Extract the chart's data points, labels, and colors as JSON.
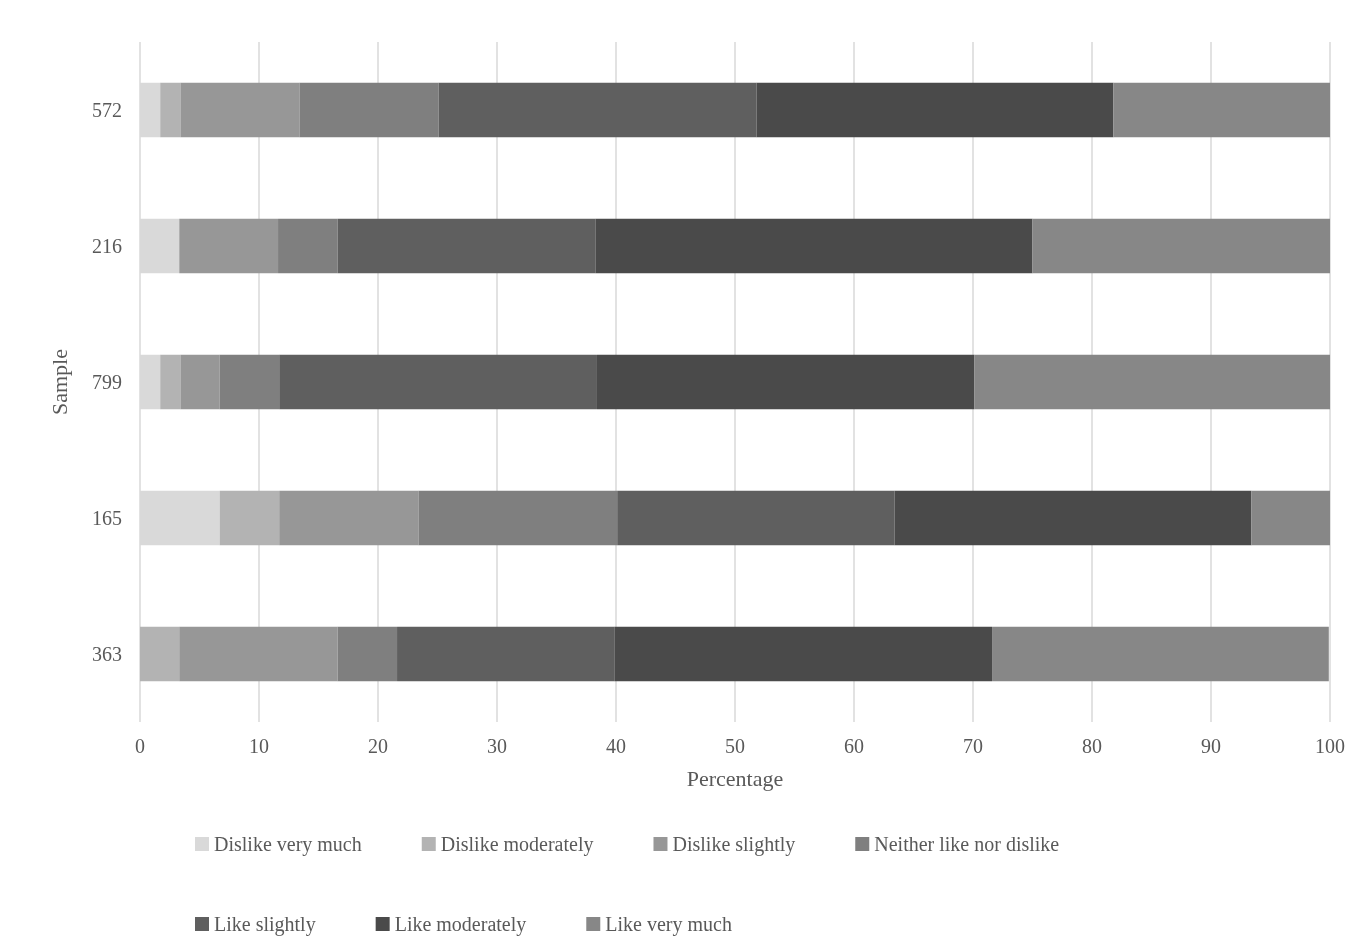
{
  "chart_data": {
    "type": "bar",
    "orientation": "horizontal",
    "stacked": true,
    "xlabel": "Percentage",
    "ylabel": "Sample",
    "categories": [
      "572",
      "216",
      "799",
      "165",
      "363"
    ],
    "xlim": [
      0,
      100
    ],
    "xticks": [
      0,
      10,
      20,
      30,
      40,
      50,
      60,
      70,
      80,
      90,
      100
    ],
    "grid": "x",
    "legend": "bottom",
    "series": [
      {
        "name": "Dislike very much",
        "color": "#d9d9d9",
        "values": [
          1.7,
          3.3,
          1.7,
          6.7,
          0
        ]
      },
      {
        "name": "Dislike moderately",
        "color": "#b3b3b3",
        "values": [
          1.7,
          0,
          1.7,
          5,
          3.3
        ]
      },
      {
        "name": "Dislike slightly",
        "color": "#979797",
        "values": [
          10,
          8.3,
          3.3,
          11.7,
          13.3
        ]
      },
      {
        "name": "Neither like nor dislike",
        "color": "#7f7f7f",
        "values": [
          11.7,
          5,
          5,
          16.7,
          5
        ]
      },
      {
        "name": "Like slightly",
        "color": "#5f5f5f",
        "values": [
          26.7,
          21.7,
          26.7,
          23.3,
          18.3
        ]
      },
      {
        "name": "Like moderately",
        "color": "#4a4a4a",
        "values": [
          30,
          36.7,
          31.7,
          30,
          31.7
        ]
      },
      {
        "name": "Like very much",
        "color": "#878787",
        "values": [
          18.3,
          25,
          30,
          6.7,
          28.3
        ]
      }
    ]
  }
}
